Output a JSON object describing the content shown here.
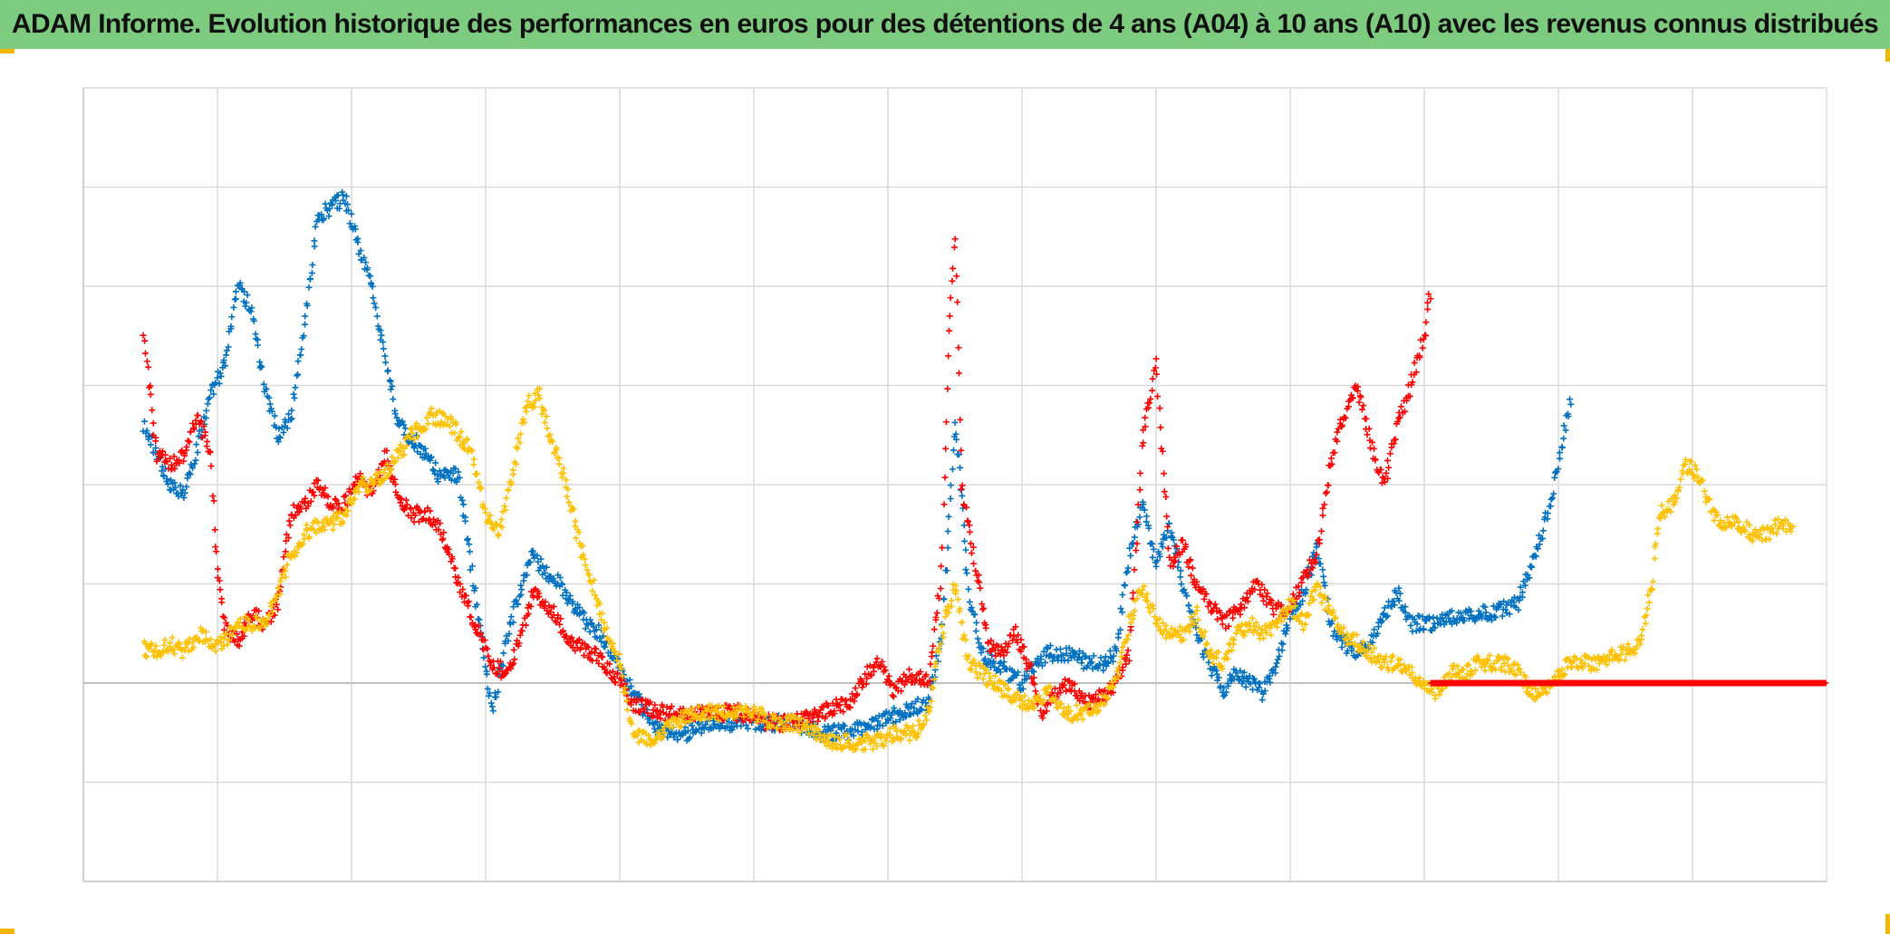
{
  "page": {
    "title": "ADAM Informe. Evolution historique des performances en euros pour des détentions de 4 ans (A04) à 10 ans (A10) avec les revenus connus distribués",
    "title_bar_color": "#7dcb7e",
    "corner_color": "#f2b800"
  },
  "chart_data": {
    "type": "scatter",
    "marker": "plus",
    "title": "ADAM Informe. Evolution historique des performances en euros pour des détentions de 4 ans (A04) à 10 ans (A10) avec les revenus connus distribués",
    "xlabel": "",
    "ylabel": "",
    "tick_labels_visible": false,
    "legend_visible": false,
    "grid": true,
    "xlim": [
      0,
      13
    ],
    "ylim": [
      -2,
      6
    ],
    "zero_line": 0,
    "series": [
      {
        "color": "#0070c0",
        "points": [
          [
            0.45,
            2.6
          ],
          [
            0.55,
            2.3
          ],
          [
            0.65,
            2.0
          ],
          [
            0.75,
            1.9
          ],
          [
            0.85,
            2.4
          ],
          [
            0.95,
            2.9
          ],
          [
            1.05,
            3.2
          ],
          [
            1.15,
            4.0
          ],
          [
            1.25,
            3.8
          ],
          [
            1.35,
            3.0
          ],
          [
            1.45,
            2.5
          ],
          [
            1.55,
            2.7
          ],
          [
            1.65,
            3.6
          ],
          [
            1.75,
            4.7
          ],
          [
            1.85,
            4.8
          ],
          [
            1.95,
            4.9
          ],
          [
            2.05,
            4.4
          ],
          [
            2.15,
            4.0
          ],
          [
            2.25,
            3.3
          ],
          [
            2.35,
            2.6
          ],
          [
            2.5,
            2.4
          ],
          [
            2.65,
            2.1
          ],
          [
            2.8,
            2.1
          ],
          [
            2.95,
            0.6
          ],
          [
            3.05,
            -0.3
          ],
          [
            3.15,
            0.4
          ],
          [
            3.25,
            0.9
          ],
          [
            3.35,
            1.3
          ],
          [
            3.45,
            1.1
          ],
          [
            3.55,
            1.0
          ],
          [
            3.65,
            0.8
          ],
          [
            3.75,
            0.6
          ],
          [
            3.85,
            0.5
          ],
          [
            3.95,
            0.3
          ],
          [
            4.05,
            0.0
          ],
          [
            4.15,
            -0.2
          ],
          [
            4.3,
            -0.5
          ],
          [
            4.5,
            -0.5
          ],
          [
            4.7,
            -0.4
          ],
          [
            4.9,
            -0.4
          ],
          [
            5.1,
            -0.4
          ],
          [
            5.3,
            -0.4
          ],
          [
            5.5,
            -0.5
          ],
          [
            5.7,
            -0.5
          ],
          [
            5.9,
            -0.4
          ],
          [
            6.1,
            -0.3
          ],
          [
            6.3,
            -0.2
          ],
          [
            6.4,
            0.5
          ],
          [
            6.45,
            1.5
          ],
          [
            6.5,
            2.7
          ],
          [
            6.55,
            1.9
          ],
          [
            6.6,
            0.9
          ],
          [
            6.7,
            0.3
          ],
          [
            6.8,
            0.2
          ],
          [
            6.9,
            0.1
          ],
          [
            7.0,
            0.0
          ],
          [
            7.1,
            0.2
          ],
          [
            7.2,
            0.3
          ],
          [
            7.35,
            0.3
          ],
          [
            7.5,
            0.2
          ],
          [
            7.6,
            0.2
          ],
          [
            7.7,
            0.3
          ],
          [
            7.8,
            1.3
          ],
          [
            7.9,
            1.8
          ],
          [
            8.0,
            1.2
          ],
          [
            8.1,
            1.6
          ],
          [
            8.2,
            1.0
          ],
          [
            8.3,
            0.5
          ],
          [
            8.4,
            0.2
          ],
          [
            8.5,
            -0.1
          ],
          [
            8.6,
            0.1
          ],
          [
            8.7,
            0.0
          ],
          [
            8.8,
            -0.1
          ],
          [
            8.9,
            0.2
          ],
          [
            9.0,
            0.7
          ],
          [
            9.1,
            0.9
          ],
          [
            9.2,
            1.4
          ],
          [
            9.3,
            0.6
          ],
          [
            9.4,
            0.4
          ],
          [
            9.5,
            0.3
          ],
          [
            9.6,
            0.4
          ],
          [
            9.7,
            0.7
          ],
          [
            9.8,
            0.9
          ],
          [
            9.9,
            0.6
          ],
          [
            10.1,
            0.6
          ],
          [
            10.3,
            0.7
          ],
          [
            10.5,
            0.7
          ],
          [
            10.7,
            0.8
          ],
          [
            10.9,
            1.6
          ],
          [
            11.0,
            2.2
          ],
          [
            11.1,
            2.9
          ]
        ]
      },
      {
        "color": "#ff0000",
        "points": [
          [
            0.45,
            3.5
          ],
          [
            0.55,
            2.3
          ],
          [
            0.65,
            2.2
          ],
          [
            0.75,
            2.3
          ],
          [
            0.85,
            2.7
          ],
          [
            0.95,
            2.3
          ],
          [
            1.0,
            1.1
          ],
          [
            1.05,
            0.6
          ],
          [
            1.15,
            0.4
          ],
          [
            1.25,
            0.7
          ],
          [
            1.35,
            0.6
          ],
          [
            1.45,
            0.8
          ],
          [
            1.55,
            1.7
          ],
          [
            1.65,
            1.8
          ],
          [
            1.75,
            2.0
          ],
          [
            1.85,
            1.8
          ],
          [
            1.95,
            1.8
          ],
          [
            2.05,
            2.1
          ],
          [
            2.15,
            1.9
          ],
          [
            2.25,
            2.3
          ],
          [
            2.35,
            1.9
          ],
          [
            2.45,
            1.7
          ],
          [
            2.55,
            1.7
          ],
          [
            2.65,
            1.6
          ],
          [
            2.8,
            1.0
          ],
          [
            2.95,
            0.5
          ],
          [
            3.05,
            0.2
          ],
          [
            3.15,
            0.1
          ],
          [
            3.25,
            0.4
          ],
          [
            3.35,
            0.9
          ],
          [
            3.45,
            0.8
          ],
          [
            3.55,
            0.6
          ],
          [
            3.65,
            0.4
          ],
          [
            3.8,
            0.3
          ],
          [
            3.95,
            0.1
          ],
          [
            4.1,
            -0.2
          ],
          [
            4.3,
            -0.3
          ],
          [
            4.5,
            -0.3
          ],
          [
            4.7,
            -0.3
          ],
          [
            4.9,
            -0.3
          ],
          [
            5.1,
            -0.4
          ],
          [
            5.3,
            -0.4
          ],
          [
            5.5,
            -0.3
          ],
          [
            5.7,
            -0.2
          ],
          [
            5.85,
            0.1
          ],
          [
            5.95,
            0.2
          ],
          [
            6.05,
            -0.1
          ],
          [
            6.15,
            0.1
          ],
          [
            6.3,
            0.0
          ],
          [
            6.4,
            1.1
          ],
          [
            6.45,
            3.3
          ],
          [
            6.5,
            4.5
          ],
          [
            6.55,
            2.0
          ],
          [
            6.65,
            1.2
          ],
          [
            6.75,
            0.4
          ],
          [
            6.85,
            0.3
          ],
          [
            6.95,
            0.5
          ],
          [
            7.05,
            0.2
          ],
          [
            7.15,
            -0.3
          ],
          [
            7.25,
            -0.1
          ],
          [
            7.35,
            0.0
          ],
          [
            7.5,
            -0.2
          ],
          [
            7.65,
            -0.1
          ],
          [
            7.8,
            0.3
          ],
          [
            7.9,
            2.5
          ],
          [
            8.0,
            3.2
          ],
          [
            8.1,
            1.2
          ],
          [
            8.2,
            1.4
          ],
          [
            8.3,
            1.0
          ],
          [
            8.4,
            0.8
          ],
          [
            8.5,
            0.6
          ],
          [
            8.65,
            0.8
          ],
          [
            8.75,
            1.0
          ],
          [
            8.85,
            0.8
          ],
          [
            8.95,
            0.7
          ],
          [
            9.05,
            0.9
          ],
          [
            9.2,
            1.3
          ],
          [
            9.3,
            2.2
          ],
          [
            9.4,
            2.7
          ],
          [
            9.5,
            3.0
          ],
          [
            9.6,
            2.4
          ],
          [
            9.7,
            2.0
          ],
          [
            9.8,
            2.6
          ],
          [
            9.9,
            3.0
          ],
          [
            10.0,
            3.5
          ],
          [
            10.05,
            4.0
          ]
        ]
      },
      {
        "color": "#ffc000",
        "points": [
          [
            0.45,
            0.35
          ],
          [
            0.55,
            0.3
          ],
          [
            0.65,
            0.4
          ],
          [
            0.75,
            0.3
          ],
          [
            0.85,
            0.5
          ],
          [
            0.95,
            0.4
          ],
          [
            1.05,
            0.4
          ],
          [
            1.15,
            0.6
          ],
          [
            1.25,
            0.6
          ],
          [
            1.35,
            0.6
          ],
          [
            1.45,
            0.9
          ],
          [
            1.55,
            1.3
          ],
          [
            1.65,
            1.5
          ],
          [
            1.75,
            1.6
          ],
          [
            1.85,
            1.6
          ],
          [
            1.95,
            1.7
          ],
          [
            2.05,
            2.0
          ],
          [
            2.15,
            2.0
          ],
          [
            2.25,
            2.1
          ],
          [
            2.35,
            2.3
          ],
          [
            2.45,
            2.5
          ],
          [
            2.6,
            2.7
          ],
          [
            2.75,
            2.6
          ],
          [
            2.9,
            2.3
          ],
          [
            3.0,
            1.7
          ],
          [
            3.1,
            1.5
          ],
          [
            3.2,
            2.1
          ],
          [
            3.3,
            2.8
          ],
          [
            3.4,
            2.9
          ],
          [
            3.5,
            2.4
          ],
          [
            3.6,
            2.0
          ],
          [
            3.7,
            1.4
          ],
          [
            3.8,
            1.0
          ],
          [
            3.9,
            0.5
          ],
          [
            4.0,
            0.2
          ],
          [
            4.1,
            -0.5
          ],
          [
            4.25,
            -0.6
          ],
          [
            4.4,
            -0.4
          ],
          [
            4.55,
            -0.3
          ],
          [
            4.7,
            -0.3
          ],
          [
            4.85,
            -0.3
          ],
          [
            5.0,
            -0.3
          ],
          [
            5.15,
            -0.4
          ],
          [
            5.3,
            -0.4
          ],
          [
            5.45,
            -0.5
          ],
          [
            5.6,
            -0.6
          ],
          [
            5.75,
            -0.6
          ],
          [
            5.9,
            -0.6
          ],
          [
            6.05,
            -0.5
          ],
          [
            6.2,
            -0.5
          ],
          [
            6.3,
            -0.3
          ],
          [
            6.4,
            0.5
          ],
          [
            6.5,
            1.0
          ],
          [
            6.6,
            0.2
          ],
          [
            6.7,
            0.1
          ],
          [
            6.8,
            0.0
          ],
          [
            6.9,
            -0.1
          ],
          [
            7.0,
            -0.2
          ],
          [
            7.1,
            -0.2
          ],
          [
            7.2,
            -0.1
          ],
          [
            7.3,
            -0.3
          ],
          [
            7.45,
            -0.3
          ],
          [
            7.6,
            -0.2
          ],
          [
            7.7,
            0.0
          ],
          [
            7.8,
            0.6
          ],
          [
            7.9,
            1.0
          ],
          [
            8.0,
            0.6
          ],
          [
            8.1,
            0.5
          ],
          [
            8.2,
            0.5
          ],
          [
            8.3,
            0.7
          ],
          [
            8.4,
            0.3
          ],
          [
            8.5,
            0.2
          ],
          [
            8.6,
            0.5
          ],
          [
            8.7,
            0.6
          ],
          [
            8.8,
            0.5
          ],
          [
            8.9,
            0.6
          ],
          [
            9.0,
            0.8
          ],
          [
            9.1,
            0.6
          ],
          [
            9.2,
            1.0
          ],
          [
            9.3,
            0.7
          ],
          [
            9.4,
            0.5
          ],
          [
            9.5,
            0.4
          ],
          [
            9.6,
            0.3
          ],
          [
            9.7,
            0.2
          ],
          [
            9.8,
            0.2
          ],
          [
            9.9,
            0.1
          ],
          [
            10.0,
            0.0
          ],
          [
            10.1,
            -0.1
          ],
          [
            10.2,
            0.1
          ],
          [
            10.3,
            0.1
          ],
          [
            10.4,
            0.2
          ],
          [
            10.5,
            0.2
          ],
          [
            10.6,
            0.2
          ],
          [
            10.7,
            0.1
          ],
          [
            10.8,
            -0.1
          ],
          [
            10.9,
            -0.1
          ],
          [
            11.0,
            0.1
          ],
          [
            11.1,
            0.2
          ],
          [
            11.2,
            0.2
          ],
          [
            11.3,
            0.2
          ],
          [
            11.4,
            0.3
          ],
          [
            11.5,
            0.3
          ],
          [
            11.6,
            0.4
          ],
          [
            11.7,
            1.0
          ],
          [
            11.75,
            1.7
          ],
          [
            11.85,
            1.8
          ],
          [
            11.95,
            2.2
          ],
          [
            12.05,
            2.1
          ],
          [
            12.15,
            1.7
          ],
          [
            12.25,
            1.6
          ],
          [
            12.35,
            1.6
          ],
          [
            12.45,
            1.5
          ],
          [
            12.55,
            1.5
          ],
          [
            12.65,
            1.6
          ],
          [
            12.75,
            1.6
          ]
        ]
      },
      {
        "color": "#ff0000",
        "points": [
          [
            10.05,
            0.0
          ],
          [
            10.3,
            0.0
          ],
          [
            10.55,
            0.0
          ],
          [
            10.8,
            0.0
          ],
          [
            11.05,
            0.0
          ],
          [
            11.3,
            0.0
          ],
          [
            11.55,
            0.0
          ],
          [
            11.8,
            0.0
          ],
          [
            12.05,
            0.0
          ],
          [
            12.3,
            0.0
          ],
          [
            12.55,
            0.0
          ],
          [
            12.8,
            0.0
          ],
          [
            13.0,
            0.0
          ]
        ]
      }
    ]
  }
}
